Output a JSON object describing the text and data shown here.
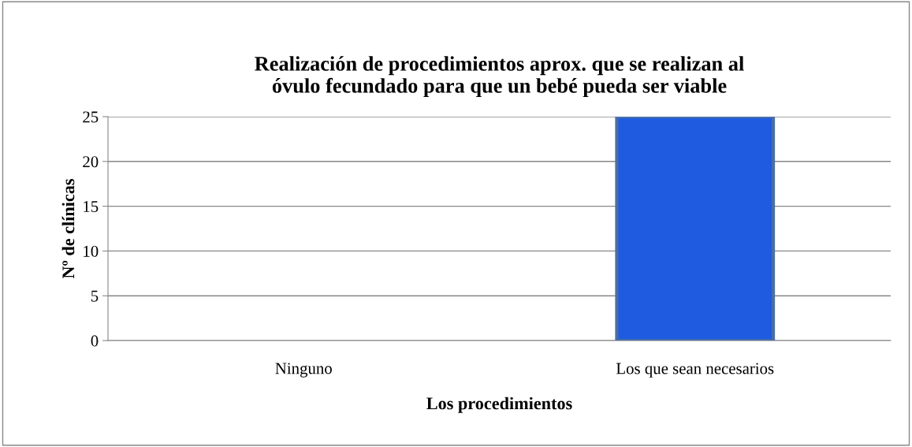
{
  "chart_data": {
    "type": "bar",
    "title": "Realización de procedimientos aprox. que se realizan al\nóvulo fecundado para que un bebé pueda ser viable",
    "xlabel": "Los procedimientos",
    "ylabel": "Nº de clínicas",
    "categories": [
      "Ninguno",
      "Los que sean necesarios"
    ],
    "values": [
      0,
      25
    ],
    "color": "#1f5be0",
    "ylim": [
      0,
      25
    ],
    "yticks": [
      0,
      5,
      10,
      15,
      20,
      25
    ],
    "grid": "y",
    "legend": false
  }
}
